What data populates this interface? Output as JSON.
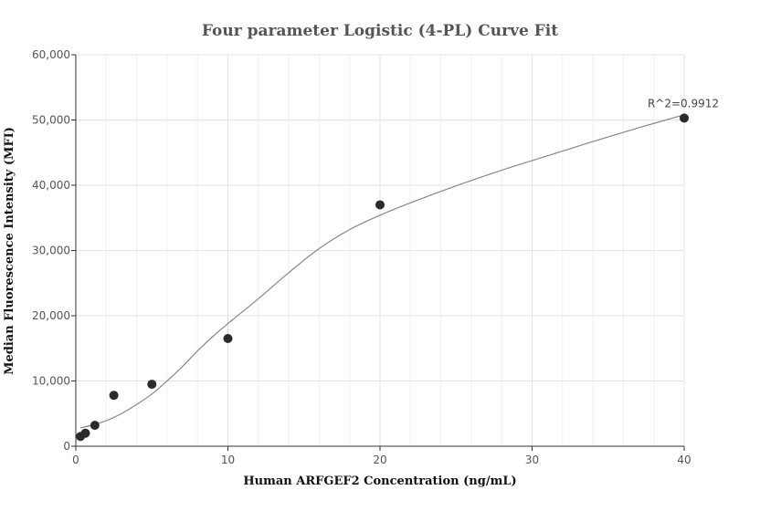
{
  "chart_data": {
    "type": "scatter",
    "title": "Four parameter Logistic (4-PL) Curve Fit",
    "xlabel": "Human ARFGEF2 Concentration (ng/mL)",
    "ylabel": "Median Fluorescence Intensity (MFI)",
    "xlim": [
      0,
      40
    ],
    "ylim": [
      0,
      60000
    ],
    "x_ticks": [
      {
        "value": 0,
        "label": "0"
      },
      {
        "value": 10,
        "label": "10"
      },
      {
        "value": 20,
        "label": "20"
      },
      {
        "value": 30,
        "label": "30"
      },
      {
        "value": 40,
        "label": "40"
      }
    ],
    "y_ticks": [
      {
        "value": 0,
        "label": "0"
      },
      {
        "value": 10000,
        "label": "10,000"
      },
      {
        "value": 20000,
        "label": "20,000"
      },
      {
        "value": 30000,
        "label": "30,000"
      },
      {
        "value": 40000,
        "label": "40,000"
      },
      {
        "value": 50000,
        "label": "50,000"
      },
      {
        "value": 60000,
        "label": "60,000"
      }
    ],
    "grid": true,
    "points": [
      {
        "x": 0.31,
        "y": 1500
      },
      {
        "x": 0.63,
        "y": 2000
      },
      {
        "x": 1.25,
        "y": 3200
      },
      {
        "x": 2.5,
        "y": 7800
      },
      {
        "x": 5,
        "y": 9500
      },
      {
        "x": 10,
        "y": 16500
      },
      {
        "x": 20,
        "y": 37000
      },
      {
        "x": 40,
        "y": 50300
      }
    ],
    "fit_curve": {
      "x": [
        0.3,
        1,
        2,
        3,
        4,
        5,
        6,
        7,
        8,
        9,
        10,
        12,
        14,
        16,
        18,
        20,
        22,
        25,
        28,
        31,
        34,
        37,
        40
      ],
      "y": [
        2800,
        3200,
        3900,
        5000,
        6400,
        8000,
        10000,
        12200,
        14600,
        16800,
        18800,
        22600,
        26600,
        30300,
        33200,
        35400,
        37300,
        39900,
        42300,
        44500,
        46700,
        48800,
        50800
      ]
    },
    "annotation": {
      "text": "R^2=0.9912",
      "x": 40,
      "y": 50300
    }
  }
}
